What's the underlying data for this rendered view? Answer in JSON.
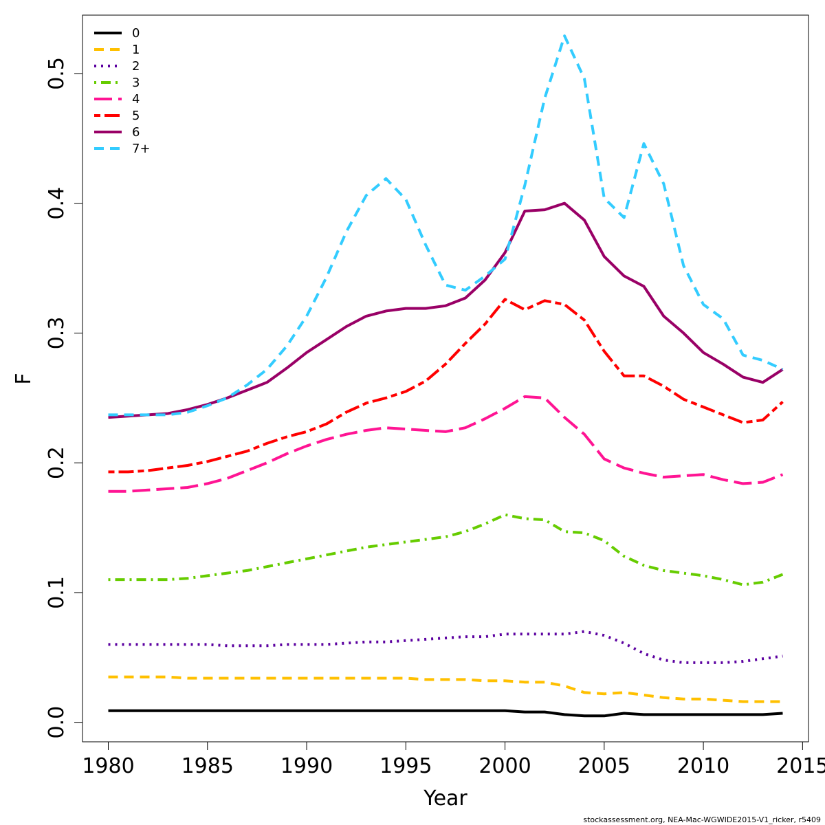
{
  "chart_data": {
    "type": "line",
    "title": "",
    "xlabel": "Year",
    "ylabel": "F",
    "xlim": [
      1978.7,
      2015.3
    ],
    "ylim": [
      -0.015,
      0.545
    ],
    "x_ticks": [
      "1980",
      "1985",
      "1990",
      "1995",
      "2000",
      "2005",
      "2010",
      "2015"
    ],
    "y_ticks": [
      "0.0",
      "0.1",
      "0.2",
      "0.3",
      "0.4",
      "0.5"
    ],
    "grid": false,
    "legend_position": "top-left",
    "x": [
      1980,
      1981,
      1982,
      1983,
      1984,
      1985,
      1986,
      1987,
      1988,
      1989,
      1990,
      1991,
      1992,
      1993,
      1994,
      1995,
      1996,
      1997,
      1998,
      1999,
      2000,
      2001,
      2002,
      2003,
      2004,
      2005,
      2006,
      2007,
      2008,
      2009,
      2010,
      2011,
      2012,
      2013,
      2014
    ],
    "series": [
      {
        "name": "0",
        "color": "#000000",
        "dash": "solid",
        "values": [
          0.009,
          0.009,
          0.009,
          0.009,
          0.009,
          0.009,
          0.009,
          0.009,
          0.009,
          0.009,
          0.009,
          0.009,
          0.009,
          0.009,
          0.009,
          0.009,
          0.009,
          0.009,
          0.009,
          0.009,
          0.009,
          0.008,
          0.008,
          0.006,
          0.005,
          0.005,
          0.007,
          0.006,
          0.006,
          0.006,
          0.006,
          0.006,
          0.006,
          0.006,
          0.007
        ]
      },
      {
        "name": "1",
        "color": "#FFC000",
        "dash": "dashed",
        "values": [
          0.035,
          0.035,
          0.035,
          0.035,
          0.034,
          0.034,
          0.034,
          0.034,
          0.034,
          0.034,
          0.034,
          0.034,
          0.034,
          0.034,
          0.034,
          0.034,
          0.033,
          0.033,
          0.033,
          0.032,
          0.032,
          0.031,
          0.031,
          0.028,
          0.023,
          0.022,
          0.023,
          0.021,
          0.019,
          0.018,
          0.018,
          0.017,
          0.016,
          0.016,
          0.016
        ]
      },
      {
        "name": "2",
        "color": "#5B00A0",
        "dash": "dotted",
        "values": [
          0.06,
          0.06,
          0.06,
          0.06,
          0.06,
          0.06,
          0.059,
          0.059,
          0.059,
          0.06,
          0.06,
          0.06,
          0.061,
          0.062,
          0.062,
          0.063,
          0.064,
          0.065,
          0.066,
          0.066,
          0.068,
          0.068,
          0.068,
          0.068,
          0.07,
          0.067,
          0.061,
          0.053,
          0.048,
          0.046,
          0.046,
          0.046,
          0.047,
          0.049,
          0.051
        ]
      },
      {
        "name": "3",
        "color": "#66CC00",
        "dash": "dotdash",
        "values": [
          0.11,
          0.11,
          0.11,
          0.11,
          0.111,
          0.113,
          0.115,
          0.117,
          0.12,
          0.123,
          0.126,
          0.129,
          0.132,
          0.135,
          0.137,
          0.139,
          0.141,
          0.143,
          0.147,
          0.153,
          0.16,
          0.157,
          0.156,
          0.147,
          0.146,
          0.14,
          0.128,
          0.121,
          0.117,
          0.115,
          0.113,
          0.11,
          0.106,
          0.108,
          0.114
        ]
      },
      {
        "name": "4",
        "color": "#FF1493",
        "dash": "longdash",
        "values": [
          0.178,
          0.178,
          0.179,
          0.18,
          0.181,
          0.184,
          0.188,
          0.194,
          0.2,
          0.207,
          0.213,
          0.218,
          0.222,
          0.225,
          0.227,
          0.226,
          0.225,
          0.224,
          0.227,
          0.234,
          0.242,
          0.251,
          0.25,
          0.235,
          0.222,
          0.203,
          0.196,
          0.192,
          0.189,
          0.19,
          0.191,
          0.187,
          0.184,
          0.185,
          0.191
        ]
      },
      {
        "name": "5",
        "color": "#FF0000",
        "dash": "twodash",
        "values": [
          0.193,
          0.193,
          0.194,
          0.196,
          0.198,
          0.201,
          0.205,
          0.209,
          0.215,
          0.22,
          0.224,
          0.23,
          0.239,
          0.246,
          0.25,
          0.255,
          0.263,
          0.276,
          0.292,
          0.307,
          0.326,
          0.318,
          0.325,
          0.322,
          0.31,
          0.286,
          0.267,
          0.267,
          0.259,
          0.249,
          0.243,
          0.237,
          0.231,
          0.233,
          0.247
        ]
      },
      {
        "name": "6",
        "color": "#990066",
        "dash": "solid",
        "values": [
          0.235,
          0.236,
          0.237,
          0.238,
          0.241,
          0.245,
          0.25,
          0.256,
          0.262,
          0.273,
          0.285,
          0.295,
          0.305,
          0.313,
          0.317,
          0.319,
          0.319,
          0.321,
          0.327,
          0.341,
          0.362,
          0.394,
          0.395,
          0.4,
          0.387,
          0.359,
          0.344,
          0.336,
          0.313,
          0.3,
          0.285,
          0.276,
          0.266,
          0.262,
          0.272
        ]
      },
      {
        "name": "7+",
        "color": "#33CCFF",
        "dash": "dashed",
        "values": [
          0.237,
          0.237,
          0.237,
          0.237,
          0.239,
          0.244,
          0.25,
          0.26,
          0.272,
          0.29,
          0.313,
          0.343,
          0.378,
          0.406,
          0.419,
          0.403,
          0.368,
          0.337,
          0.333,
          0.344,
          0.357,
          0.414,
          0.481,
          0.529,
          0.496,
          0.404,
          0.389,
          0.446,
          0.415,
          0.352,
          0.322,
          0.311,
          0.283,
          0.279,
          0.272
        ]
      }
    ]
  },
  "footer": {
    "credit": "stockassessment.org, NEA-Mac-WGWIDE2015-V1_ricker, r5409"
  }
}
